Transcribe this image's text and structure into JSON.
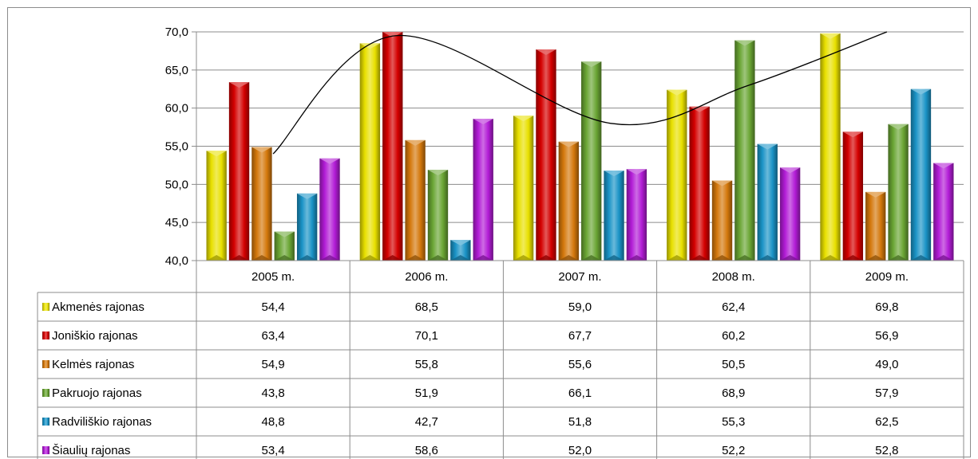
{
  "chart_data": {
    "type": "bar",
    "categories": [
      "2005 m.",
      "2006 m.",
      "2007 m.",
      "2008 m.",
      "2009 m."
    ],
    "series": [
      {
        "name": "Akmenės rajonas",
        "color": "#e8e000",
        "values": [
          54.4,
          68.5,
          59.0,
          62.4,
          69.8
        ],
        "labels": [
          "54,4",
          "68,5",
          "59,0",
          "62,4",
          "69,8"
        ]
      },
      {
        "name": "Joniškio rajonas",
        "color": "#d40000",
        "values": [
          63.4,
          70.1,
          67.7,
          60.2,
          56.9
        ],
        "labels": [
          "63,4",
          "70,1",
          "67,7",
          "60,2",
          "56,9"
        ]
      },
      {
        "name": "Kelmės rajonas",
        "color": "#d4780c",
        "values": [
          54.9,
          55.8,
          55.6,
          50.5,
          49.0
        ],
        "labels": [
          "54,9",
          "55,8",
          "55,6",
          "50,5",
          "49,0"
        ]
      },
      {
        "name": "Pakruojo rajonas",
        "color": "#6aa534",
        "values": [
          43.8,
          51.9,
          66.1,
          68.9,
          57.9
        ],
        "labels": [
          "43,8",
          "51,9",
          "66,1",
          "68,9",
          "57,9"
        ]
      },
      {
        "name": "Radviliškio rajonas",
        "color": "#1a93c6",
        "values": [
          48.8,
          42.7,
          51.8,
          55.3,
          62.5
        ],
        "labels": [
          "48,8",
          "42,7",
          "51,8",
          "55,3",
          "62,5"
        ]
      },
      {
        "name": "Šiaulių rajonas",
        "color": "#b21cd6",
        "values": [
          53.4,
          58.6,
          52.0,
          52.2,
          52.8
        ],
        "labels": [
          "53,4",
          "58,6",
          "52,0",
          "52,2",
          "52,8"
        ]
      }
    ],
    "ylim": [
      40,
      70
    ],
    "yticks": [
      40,
      45,
      50,
      55,
      60,
      65,
      70
    ],
    "ytick_labels": [
      "40,0",
      "45,0",
      "50,0",
      "55,0",
      "60,0",
      "65,0",
      "70,0"
    ],
    "grid": true,
    "data_table": true,
    "trend_curve_y": [
      54,
      69.5,
      58,
      63,
      70
    ]
  }
}
